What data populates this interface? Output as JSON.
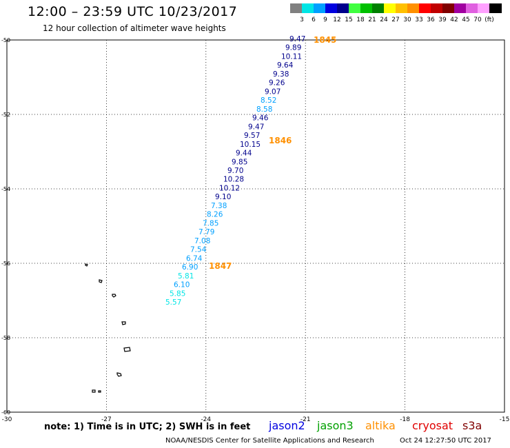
{
  "header": {
    "title": "12:00 – 23:59 UTC 10/23/2017",
    "subtitle": "12 hour collection of altimeter wave heights"
  },
  "legend": {
    "colors": [
      "#808080",
      "#00e5e5",
      "#00a0ff",
      "#0000e0",
      "#00008c",
      "#40ff40",
      "#00c000",
      "#008000",
      "#ffff00",
      "#ffc000",
      "#ff9000",
      "#ff0000",
      "#c00000",
      "#800000",
      "#a000a0",
      "#e060e0",
      "#ffa0ff",
      "#000000"
    ],
    "labels": [
      "3",
      "6",
      "9",
      "12",
      "15",
      "18",
      "21",
      "24",
      "27",
      "30",
      "33",
      "36",
      "39",
      "42",
      "45",
      "70",
      "(ft)"
    ]
  },
  "axes": {
    "lon_min": -30,
    "lon_max": -15,
    "lat_min": -60,
    "lat_max": -50,
    "lon_ticks": [
      "-30",
      "-27",
      "-24",
      "-21",
      "-18",
      "-15"
    ],
    "lat_ticks": [
      "-50",
      "-52",
      "-54",
      "-56",
      "-58",
      "-60"
    ]
  },
  "observations": [
    {
      "v": "9.47",
      "c": "#00008c"
    },
    {
      "v": "9.89",
      "c": "#00008c"
    },
    {
      "v": "10.11",
      "c": "#00008c"
    },
    {
      "v": "9.64",
      "c": "#00008c"
    },
    {
      "v": "9.38",
      "c": "#00008c"
    },
    {
      "v": "9.26",
      "c": "#00008c"
    },
    {
      "v": "9.07",
      "c": "#00008c"
    },
    {
      "v": "8.52",
      "c": "#00a0ff"
    },
    {
      "v": "8.58",
      "c": "#00a0ff"
    },
    {
      "v": "9.46",
      "c": "#00008c"
    },
    {
      "v": "9.47",
      "c": "#00008c"
    },
    {
      "v": "9.57",
      "c": "#00008c"
    },
    {
      "v": "10.15",
      "c": "#00008c"
    },
    {
      "v": "9.44",
      "c": "#00008c"
    },
    {
      "v": "9.85",
      "c": "#00008c"
    },
    {
      "v": "9.70",
      "c": "#00008c"
    },
    {
      "v": "10.28",
      "c": "#00008c"
    },
    {
      "v": "10.12",
      "c": "#00008c"
    },
    {
      "v": "9.10",
      "c": "#00008c"
    },
    {
      "v": "7.38",
      "c": "#00a0ff"
    },
    {
      "v": "8.26",
      "c": "#00a0ff"
    },
    {
      "v": "7.85",
      "c": "#00a0ff"
    },
    {
      "v": "7.79",
      "c": "#00a0ff"
    },
    {
      "v": "7.08",
      "c": "#00a0ff"
    },
    {
      "v": "7.54",
      "c": "#00a0ff"
    },
    {
      "v": "6.74",
      "c": "#00a0ff"
    },
    {
      "v": "6.90",
      "c": "#00a0ff"
    },
    {
      "v": "5.81",
      "c": "#00e5e5"
    },
    {
      "v": "6.10",
      "c": "#00a0ff"
    },
    {
      "v": "5.85",
      "c": "#00e5e5"
    },
    {
      "v": "5.57",
      "c": "#00e5e5"
    }
  ],
  "time_markers": [
    "1845",
    "1846",
    "1847"
  ],
  "time_marker_color": "#ff9000",
  "note": "note: 1) Time is in UTC; 2) SWH is in feet",
  "missions": [
    {
      "name": "jason2",
      "color": "#0000e0"
    },
    {
      "name": "jason3",
      "color": "#00a000"
    },
    {
      "name": "altika",
      "color": "#ff9000"
    },
    {
      "name": "cryosat",
      "color": "#e00000"
    },
    {
      "name": "s3a",
      "color": "#800000"
    }
  ],
  "credit": "NOAA/NESDIS Center for Satellite Applications and Research",
  "generated": "Oct 24 12:27:50 UTC 2017"
}
